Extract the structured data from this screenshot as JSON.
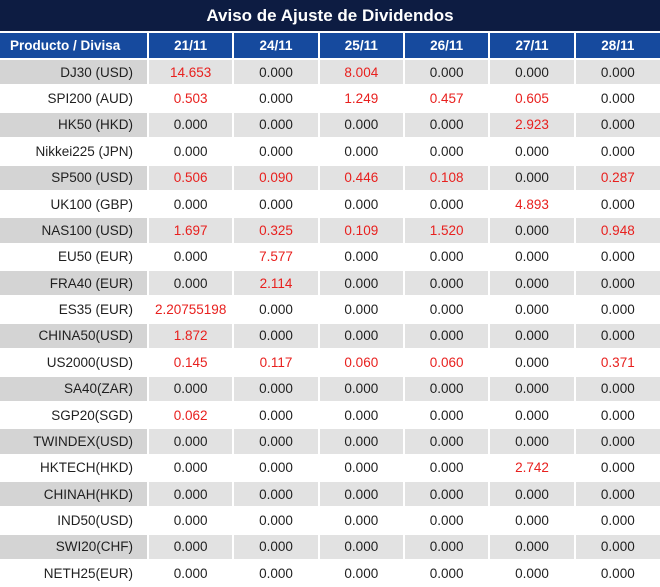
{
  "title": "Aviso de Ajuste de Dividendos",
  "table": {
    "product_column_header": "Producto / Divisa",
    "date_columns": [
      "21/11",
      "24/11",
      "25/11",
      "26/11",
      "27/11",
      "28/11"
    ],
    "rows": [
      {
        "product": "DJ30 (USD)",
        "values": [
          "14.653",
          "0.000",
          "8.004",
          "0.000",
          "0.000",
          "0.000"
        ]
      },
      {
        "product": "SPI200 (AUD)",
        "values": [
          "0.503",
          "0.000",
          "1.249",
          "0.457",
          "0.605",
          "0.000"
        ]
      },
      {
        "product": "HK50 (HKD)",
        "values": [
          "0.000",
          "0.000",
          "0.000",
          "0.000",
          "2.923",
          "0.000"
        ]
      },
      {
        "product": "Nikkei225 (JPN)",
        "values": [
          "0.000",
          "0.000",
          "0.000",
          "0.000",
          "0.000",
          "0.000"
        ]
      },
      {
        "product": "SP500 (USD)",
        "values": [
          "0.506",
          "0.090",
          "0.446",
          "0.108",
          "0.000",
          "0.287"
        ]
      },
      {
        "product": "UK100 (GBP)",
        "values": [
          "0.000",
          "0.000",
          "0.000",
          "0.000",
          "4.893",
          "0.000"
        ]
      },
      {
        "product": "NAS100 (USD)",
        "values": [
          "1.697",
          "0.325",
          "0.109",
          "1.520",
          "0.000",
          "0.948"
        ]
      },
      {
        "product": "EU50 (EUR)",
        "values": [
          "0.000",
          "7.577",
          "0.000",
          "0.000",
          "0.000",
          "0.000"
        ]
      },
      {
        "product": "FRA40 (EUR)",
        "values": [
          "0.000",
          "2.114",
          "0.000",
          "0.000",
          "0.000",
          "0.000"
        ]
      },
      {
        "product": "ES35 (EUR)",
        "values": [
          "2.20755198",
          "0.000",
          "0.000",
          "0.000",
          "0.000",
          "0.000"
        ]
      },
      {
        "product": "CHINA50(USD)",
        "values": [
          "1.872",
          "0.000",
          "0.000",
          "0.000",
          "0.000",
          "0.000"
        ]
      },
      {
        "product": "US2000(USD)",
        "values": [
          "0.145",
          "0.117",
          "0.060",
          "0.060",
          "0.000",
          "0.371"
        ]
      },
      {
        "product": "SA40(ZAR)",
        "values": [
          "0.000",
          "0.000",
          "0.000",
          "0.000",
          "0.000",
          "0.000"
        ]
      },
      {
        "product": "SGP20(SGD)",
        "values": [
          "0.062",
          "0.000",
          "0.000",
          "0.000",
          "0.000",
          "0.000"
        ]
      },
      {
        "product": "TWINDEX(USD)",
        "values": [
          "0.000",
          "0.000",
          "0.000",
          "0.000",
          "0.000",
          "0.000"
        ]
      },
      {
        "product": "HKTECH(HKD)",
        "values": [
          "0.000",
          "0.000",
          "0.000",
          "0.000",
          "2.742",
          "0.000"
        ]
      },
      {
        "product": "CHINAH(HKD)",
        "values": [
          "0.000",
          "0.000",
          "0.000",
          "0.000",
          "0.000",
          "0.000"
        ]
      },
      {
        "product": "IND50(USD)",
        "values": [
          "0.000",
          "0.000",
          "0.000",
          "0.000",
          "0.000",
          "0.000"
        ]
      },
      {
        "product": "SWI20(CHF)",
        "values": [
          "0.000",
          "0.000",
          "0.000",
          "0.000",
          "0.000",
          "0.000"
        ]
      },
      {
        "product": "NETH25(EUR)",
        "values": [
          "0.000",
          "0.000",
          "0.000",
          "0.000",
          "0.000",
          "0.000"
        ]
      }
    ]
  },
  "colors": {
    "title_bg": "#0d1c42",
    "header_bg": "#164a9e",
    "stripe_label_bg": "#d4d4d4",
    "stripe_value_bg": "#e2e2e2",
    "highlight_value": "#e8201e",
    "value_text": "#1f1f1f"
  }
}
